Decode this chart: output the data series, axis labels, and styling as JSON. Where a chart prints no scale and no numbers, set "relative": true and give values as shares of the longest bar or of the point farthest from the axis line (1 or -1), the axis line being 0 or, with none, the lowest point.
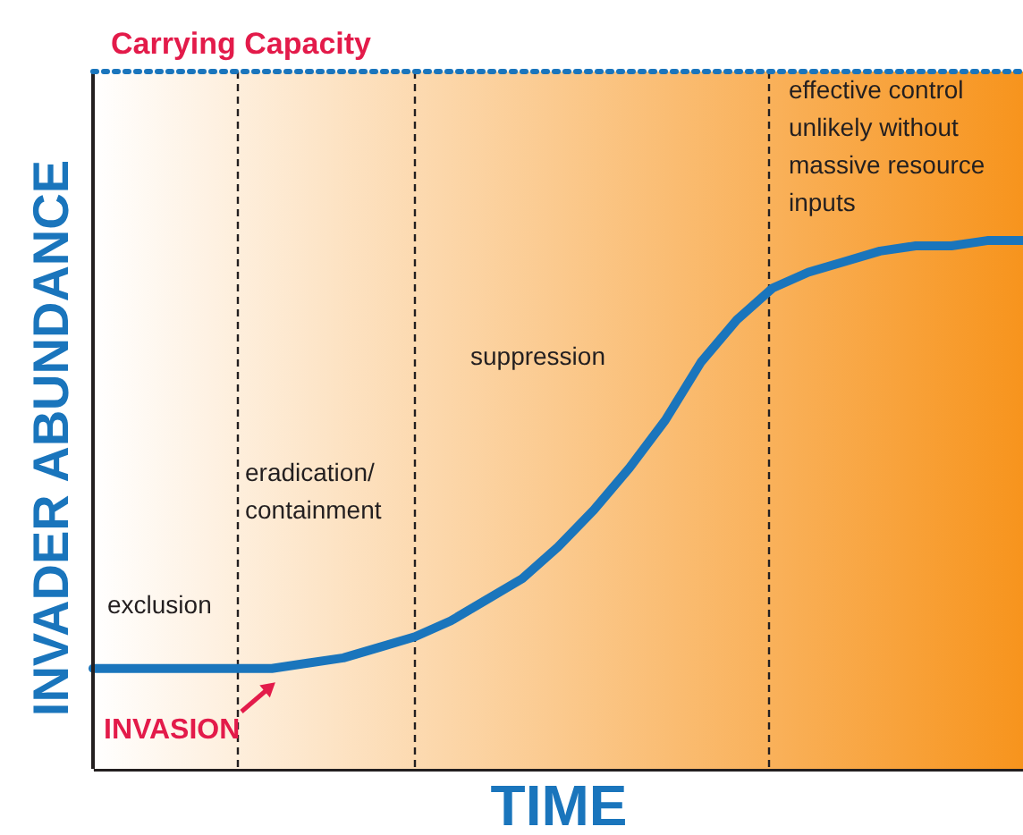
{
  "chart_data": {
    "type": "line",
    "relative": true,
    "xlabel": "TIME",
    "ylabel": "INVADER ABUNDANCE",
    "categories": [
      null,
      null,
      null,
      null,
      null,
      null,
      null,
      null,
      null,
      null,
      null,
      null,
      null,
      null,
      null,
      null,
      null,
      null,
      null,
      null,
      null,
      null,
      null,
      null,
      null,
      null,
      null
    ],
    "series": [
      {
        "color": "#1a75bc",
        "values": [
          0.19,
          0.19,
          0.19,
          0.19,
          0.19,
          0.19,
          0.2,
          0.21,
          0.23,
          0.25,
          0.28,
          0.32,
          0.36,
          0.42,
          0.49,
          0.57,
          0.66,
          0.77,
          0.85,
          0.91,
          0.94,
          0.96,
          0.98,
          0.99,
          0.99,
          1.0,
          1.0
        ]
      }
    ],
    "tick_labels": false,
    "grid": "x",
    "marker": "none",
    "line_style": "solid",
    "ref_lines": [
      {
        "axis": "y",
        "value": 1.32,
        "label": "Carrying Capacity",
        "line_style": "dotted",
        "color": "#1a75bc"
      }
    ],
    "annotations": [
      "exclusion",
      "eradication/\ncontainment",
      "suppression",
      "effective control\nunlikely without\nmassive resource\ninputs",
      "INVASION"
    ]
  }
}
